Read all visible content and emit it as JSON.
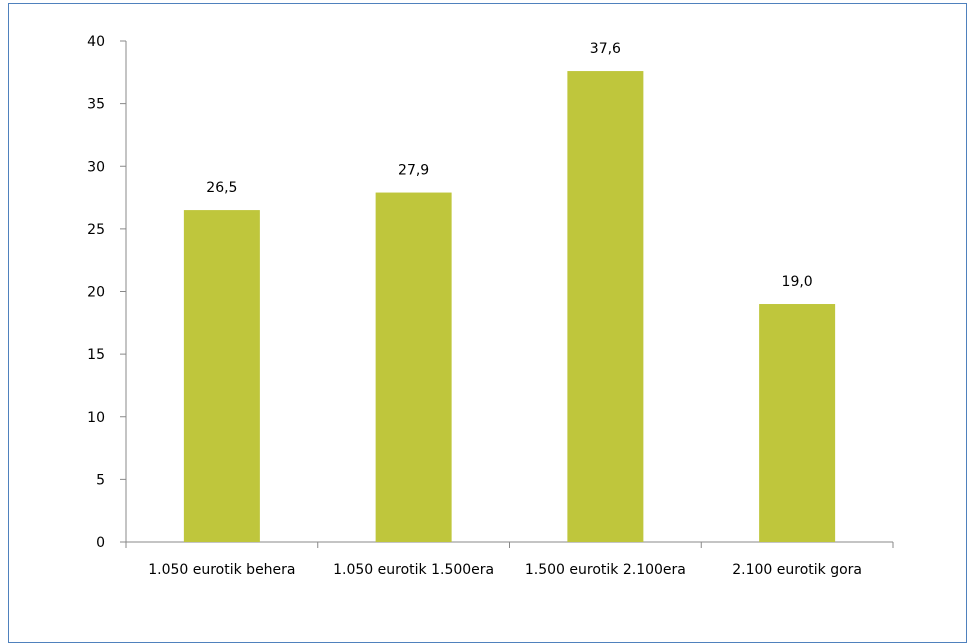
{
  "chart_data": {
    "type": "bar",
    "categories": [
      "1.050 eurotik behera",
      "1.050 eurotik 1.500era",
      "1.500 eurotik 2.100era",
      "2.100 eurotik gora"
    ],
    "values": [
      26.5,
      27.9,
      37.6,
      19.0
    ],
    "value_labels": [
      "26,5",
      "27,9",
      "37,6",
      "19,0"
    ],
    "y_ticks": [
      0,
      5,
      10,
      15,
      20,
      25,
      30,
      35,
      40
    ],
    "y_tick_labels": [
      "0",
      "5",
      "10",
      "15",
      "20",
      "25",
      "30",
      "35",
      "40"
    ],
    "ylim": [
      0,
      40
    ],
    "title": "",
    "xlabel": "",
    "ylabel": "",
    "grid": false,
    "legend": "none",
    "colors": {
      "bar": "#bfc63c",
      "axis": "#888888",
      "frame": "#4f81bd"
    }
  }
}
